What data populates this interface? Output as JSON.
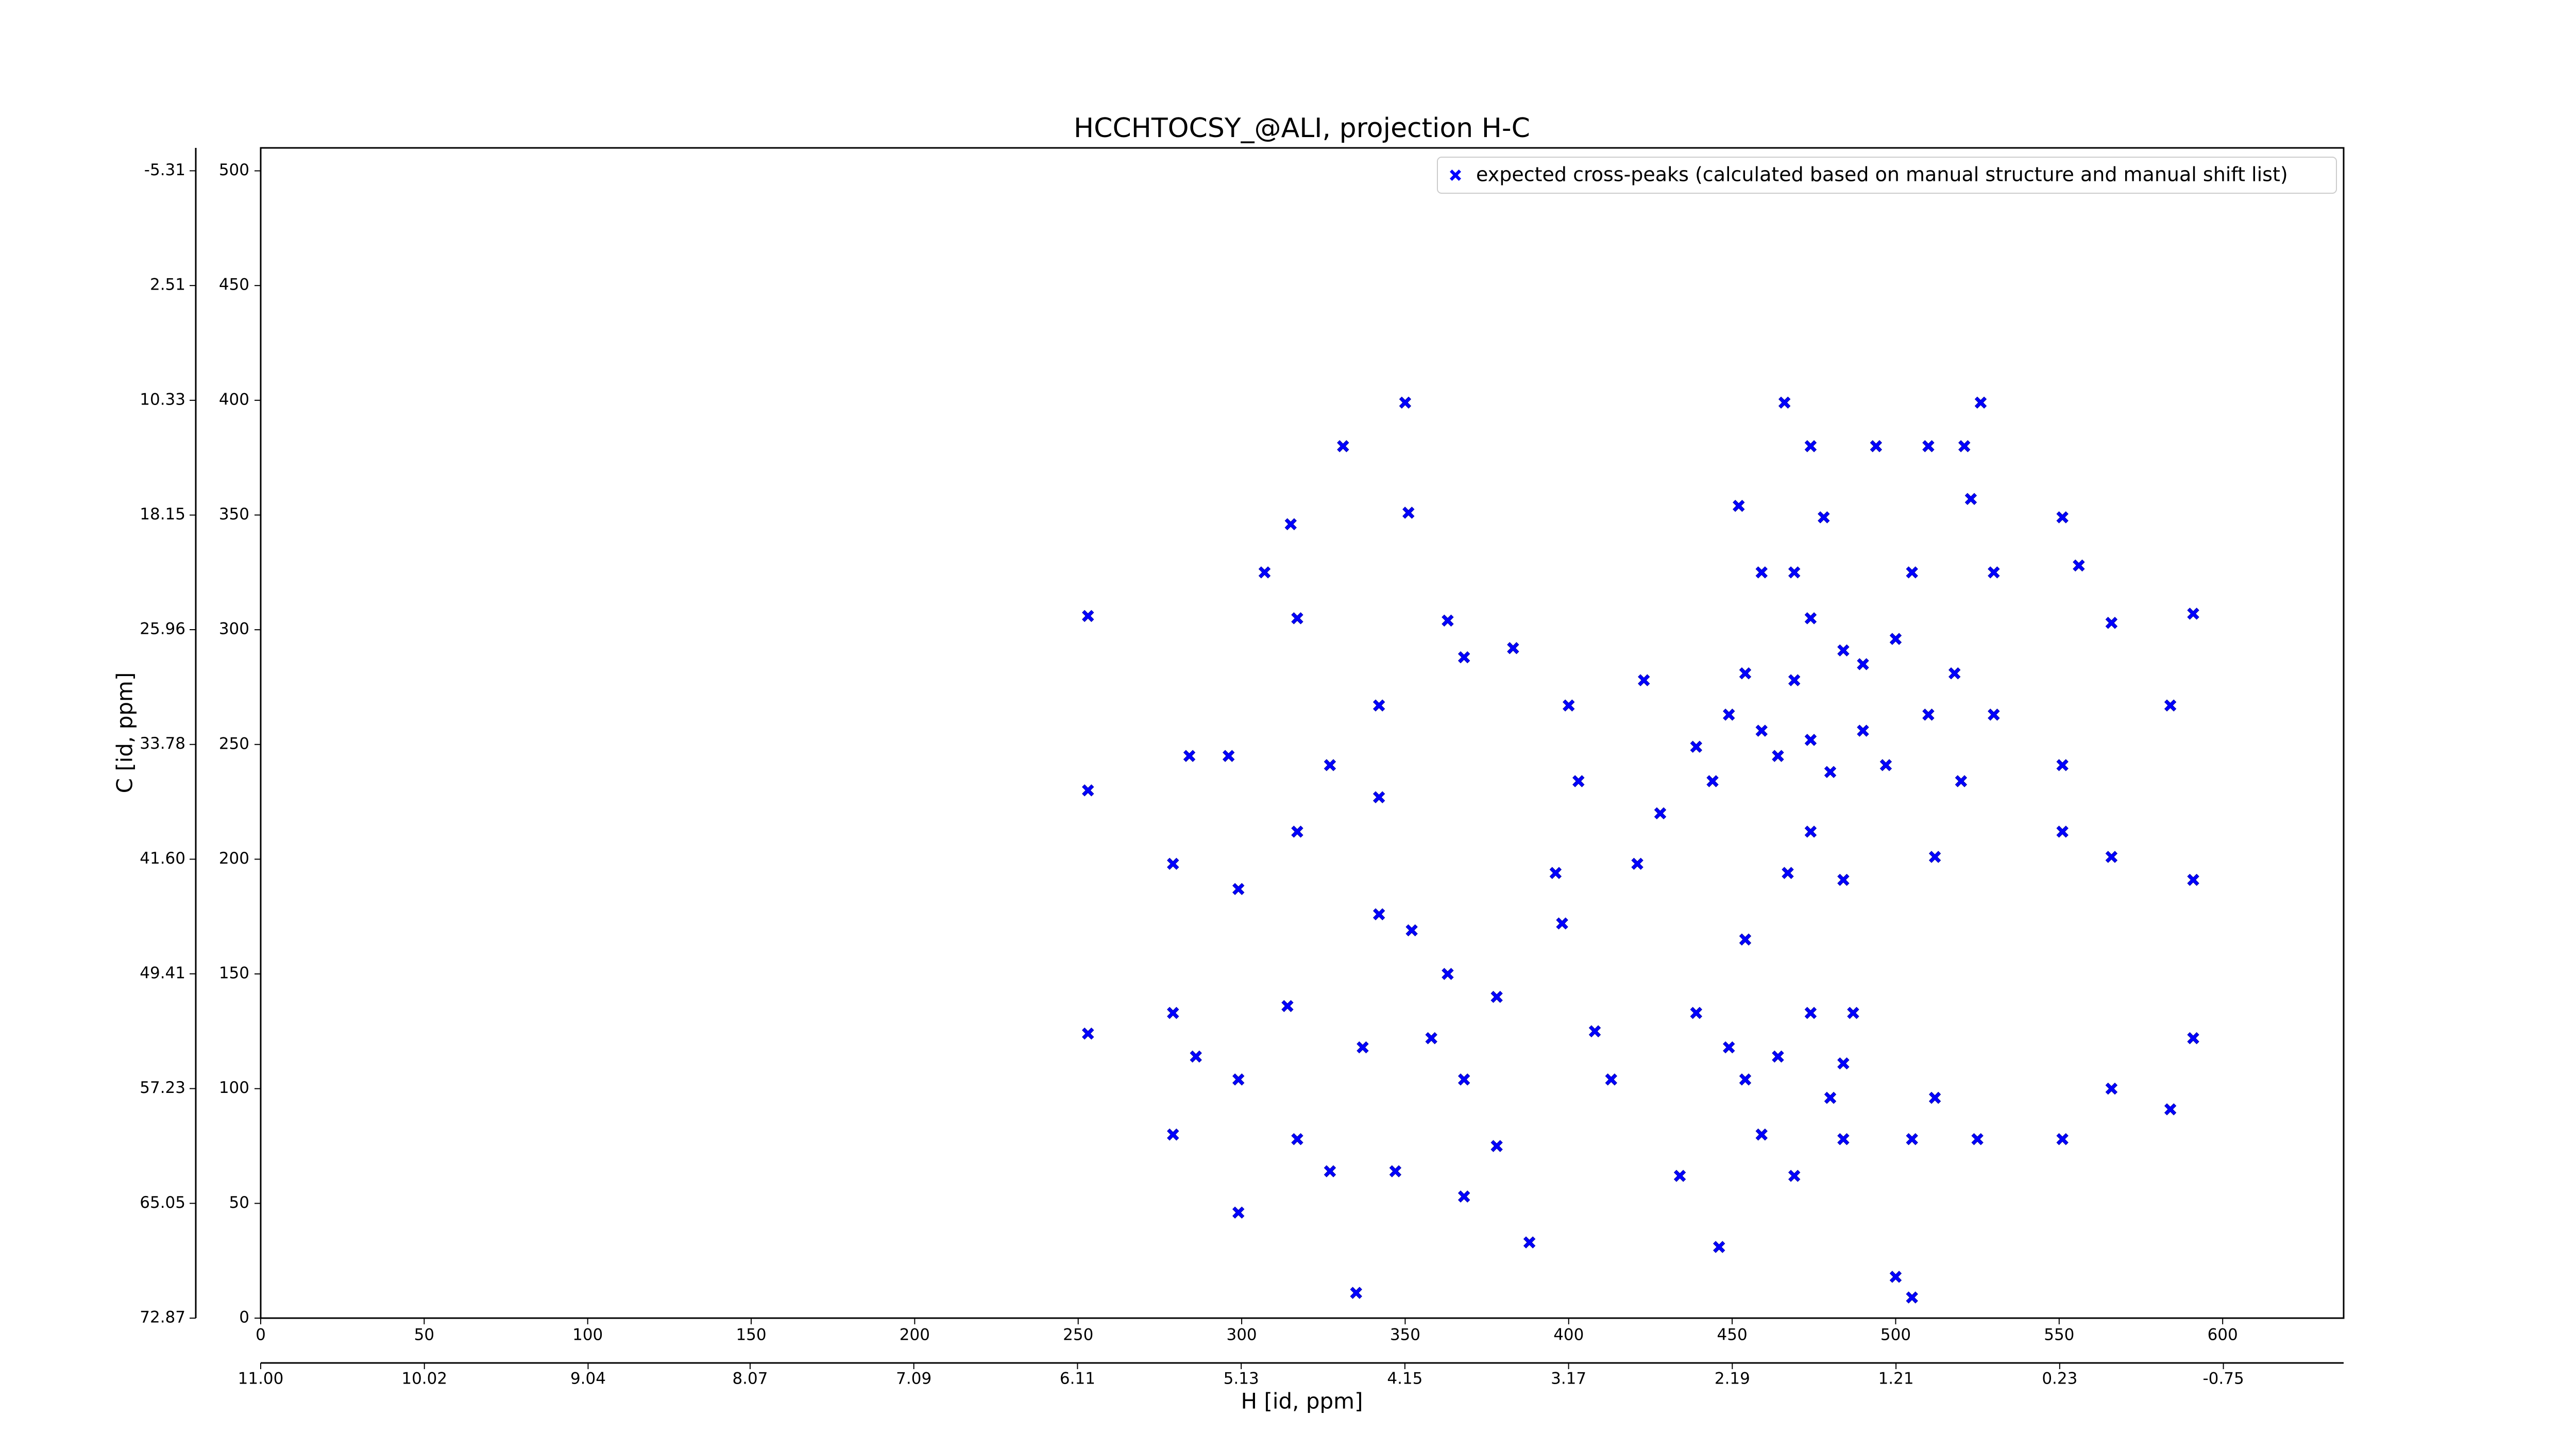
{
  "chart_data": {
    "type": "scatter",
    "title": "HCCHTOCSY_@ALI, projection H-C",
    "xlabel": "H [id, ppm]",
    "ylabel": "C [id, ppm]",
    "xlim": [
      0,
      637
    ],
    "ylim": [
      0,
      510
    ],
    "xticks": [
      0,
      50,
      100,
      150,
      200,
      250,
      300,
      350,
      400,
      450,
      500,
      550,
      600
    ],
    "yticks": [
      0,
      50,
      100,
      150,
      200,
      250,
      300,
      350,
      400,
      450,
      500
    ],
    "x2lim": [
      11.0,
      -1.47
    ],
    "x2ticks": [
      {
        "value": 11.0,
        "label": "11.00"
      },
      10.02,
      9.04,
      8.07,
      7.09,
      6.11,
      5.13,
      4.15,
      3.17,
      2.19,
      1.21,
      0.23,
      -0.75
    ],
    "y2lim": [
      72.87,
      -6.87
    ],
    "y2ticks": [
      72.87,
      65.05,
      57.23,
      49.41,
      {
        "value": 41.6,
        "label": "41.60"
      },
      33.78,
      25.96,
      18.15,
      10.33,
      2.51,
      -5.31
    ],
    "legend": "upper right",
    "series": [
      {
        "name": "expected cross-peaks (calculated based on manual structure and manual shift list)",
        "color": "#0000ff",
        "x": [
          350,
          466,
          526,
          331,
          474,
          494,
          510,
          521,
          452,
          478,
          551,
          523,
          315,
          351,
          307,
          459,
          469,
          505,
          530,
          556,
          253,
          317,
          363,
          474,
          484,
          500,
          566,
          591,
          368,
          383,
          423,
          454,
          469,
          490,
          518,
          342,
          400,
          449,
          459,
          474,
          490,
          510,
          530,
          584,
          284,
          296,
          327,
          439,
          464,
          480,
          497,
          551,
          253,
          342,
          403,
          444,
          520,
          317,
          428,
          474,
          551,
          279,
          299,
          396,
          421,
          467,
          484,
          512,
          566,
          591,
          342,
          352,
          398,
          454,
          363,
          279,
          314,
          378,
          439,
          474,
          487,
          253,
          286,
          337,
          358,
          408,
          449,
          464,
          484,
          591,
          299,
          368,
          413,
          454,
          480,
          512,
          566,
          584,
          279,
          317,
          378,
          459,
          484,
          505,
          525,
          551,
          327,
          347,
          368,
          434,
          469,
          388,
          446,
          500,
          505,
          335,
          299
        ],
        "values": [
          399,
          399,
          399,
          380,
          380,
          380,
          380,
          380,
          354,
          349,
          349,
          357,
          346,
          351,
          325,
          325,
          325,
          325,
          325,
          328,
          306,
          305,
          304,
          305,
          291,
          296,
          303,
          307,
          288,
          292,
          278,
          281,
          278,
          285,
          281,
          267,
          267,
          263,
          256,
          252,
          256,
          263,
          263,
          267,
          245,
          245,
          241,
          249,
          245,
          238,
          241,
          241,
          230,
          227,
          234,
          234,
          234,
          212,
          220,
          212,
          212,
          198,
          187,
          194,
          198,
          194,
          191,
          201,
          201,
          191,
          176,
          169,
          172,
          165,
          150,
          133,
          136,
          140,
          133,
          133,
          133,
          124,
          114,
          118,
          122,
          125,
          118,
          114,
          111,
          122,
          104,
          104,
          104,
          104,
          96,
          96,
          100,
          91,
          80,
          78,
          75,
          80,
          78,
          78,
          78,
          78,
          64,
          64,
          53,
          62,
          62,
          33,
          31,
          18,
          9,
          11,
          46
        ]
      }
    ]
  }
}
